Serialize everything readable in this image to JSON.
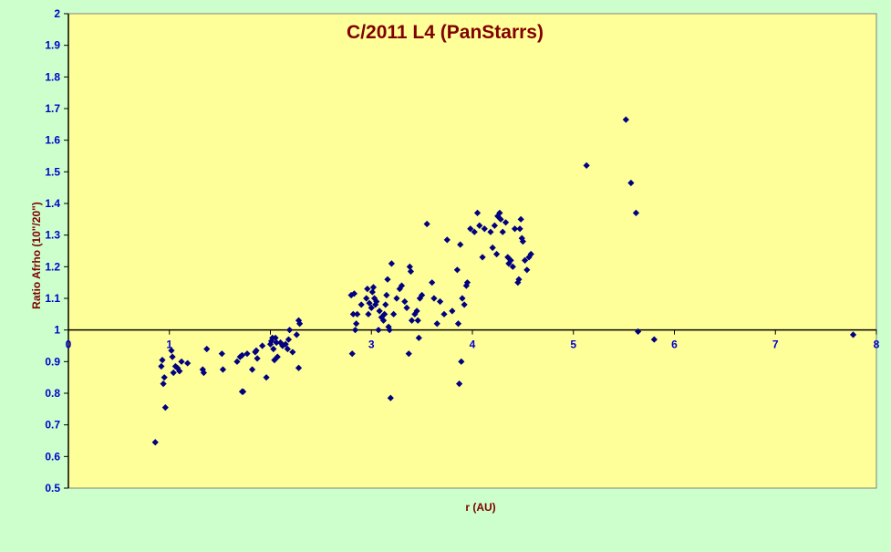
{
  "chart_data": {
    "type": "scatter",
    "title": "C/2011 L4 (PanStarrs)",
    "xlabel": "r (AU)",
    "ylabel": "Ratio Afrho (10\"/20\")",
    "xlim": [
      0,
      8
    ],
    "ylim": [
      0.5,
      2
    ],
    "x_axis_crosses_y": 1,
    "x_ticks": [
      0,
      1,
      2,
      3,
      4,
      5,
      6,
      7,
      8
    ],
    "x_tick_labels": [
      "0",
      "1",
      "",
      "3",
      "4",
      "5",
      "6",
      "7",
      "8"
    ],
    "y_ticks": [
      0.5,
      0.6,
      0.7,
      0.8,
      0.9,
      1,
      1.1,
      1.2,
      1.3,
      1.4,
      1.5,
      1.6,
      1.7,
      1.8,
      1.9,
      2
    ],
    "y_tick_labels": [
      "0.5",
      "0.6",
      "0.7",
      "0.8",
      "0.9",
      "1",
      "1.1",
      "1.2",
      "1.3",
      "1.4",
      "1.5",
      "1.6",
      "1.7",
      "1.8",
      "1.9",
      "2"
    ],
    "grid": false,
    "legend": "none",
    "colors": {
      "background": "#ccffcc",
      "plot_area": "#ffff99",
      "marker": "#000080",
      "title": "#800000",
      "axis_label": "#800000",
      "tick_label": "#0000cc"
    },
    "series": [
      {
        "marker": "diamond",
        "points": [
          [
            0.86,
            0.645
          ],
          [
            0.93,
            0.905
          ],
          [
            0.92,
            0.885
          ],
          [
            0.94,
            0.83
          ],
          [
            0.95,
            0.85
          ],
          [
            0.96,
            0.755
          ],
          [
            1.02,
            0.935
          ],
          [
            1.03,
            0.915
          ],
          [
            1.04,
            0.865
          ],
          [
            1.06,
            0.885
          ],
          [
            1.08,
            0.88
          ],
          [
            1.1,
            0.87
          ],
          [
            1.12,
            0.9
          ],
          [
            1.18,
            0.895
          ],
          [
            1.33,
            0.875
          ],
          [
            1.34,
            0.865
          ],
          [
            1.37,
            0.94
          ],
          [
            1.52,
            0.925
          ],
          [
            1.53,
            0.875
          ],
          [
            1.67,
            0.9
          ],
          [
            1.7,
            0.915
          ],
          [
            1.72,
            0.92
          ],
          [
            1.72,
            0.805
          ],
          [
            1.73,
            0.805
          ],
          [
            1.77,
            0.925
          ],
          [
            1.82,
            0.875
          ],
          [
            1.85,
            0.93
          ],
          [
            1.86,
            0.935
          ],
          [
            1.87,
            0.91
          ],
          [
            1.92,
            0.95
          ],
          [
            1.96,
            0.85
          ],
          [
            2.0,
            0.955
          ],
          [
            2.01,
            0.965
          ],
          [
            2.02,
            0.975
          ],
          [
            2.03,
            0.94
          ],
          [
            2.04,
            0.905
          ],
          [
            2.05,
            0.975
          ],
          [
            2.06,
            0.96
          ],
          [
            2.07,
            0.915
          ],
          [
            2.1,
            0.96
          ],
          [
            2.12,
            0.95
          ],
          [
            2.15,
            0.955
          ],
          [
            2.17,
            0.94
          ],
          [
            2.18,
            0.97
          ],
          [
            2.19,
            1.0
          ],
          [
            2.22,
            0.93
          ],
          [
            2.26,
            0.985
          ],
          [
            2.28,
            0.88
          ],
          [
            2.28,
            1.03
          ],
          [
            2.29,
            1.02
          ],
          [
            2.8,
            1.11
          ],
          [
            2.81,
            0.925
          ],
          [
            2.82,
            1.05
          ],
          [
            2.83,
            1.115
          ],
          [
            2.84,
            1.0
          ],
          [
            2.85,
            1.02
          ],
          [
            2.86,
            1.05
          ],
          [
            2.9,
            1.08
          ],
          [
            2.95,
            1.1
          ],
          [
            2.96,
            1.13
          ],
          [
            2.97,
            1.05
          ],
          [
            2.98,
            1.085
          ],
          [
            3.0,
            1.07
          ],
          [
            3.01,
            1.12
          ],
          [
            3.02,
            1.135
          ],
          [
            3.03,
            1.1
          ],
          [
            3.04,
            1.08
          ],
          [
            3.05,
            1.09
          ],
          [
            3.07,
            1.0
          ],
          [
            3.08,
            1.06
          ],
          [
            3.1,
            1.04
          ],
          [
            3.12,
            1.03
          ],
          [
            3.13,
            1.05
          ],
          [
            3.14,
            1.08
          ],
          [
            3.15,
            1.11
          ],
          [
            3.16,
            1.16
          ],
          [
            3.17,
            1.01
          ],
          [
            3.18,
            1.0
          ],
          [
            3.19,
            0.785
          ],
          [
            3.2,
            1.21
          ],
          [
            3.22,
            1.05
          ],
          [
            3.25,
            1.1
          ],
          [
            3.28,
            1.13
          ],
          [
            3.3,
            1.14
          ],
          [
            3.33,
            1.09
          ],
          [
            3.35,
            1.07
          ],
          [
            3.37,
            0.925
          ],
          [
            3.38,
            1.2
          ],
          [
            3.39,
            1.185
          ],
          [
            3.4,
            1.03
          ],
          [
            3.43,
            1.05
          ],
          [
            3.45,
            1.06
          ],
          [
            3.46,
            1.03
          ],
          [
            3.47,
            0.975
          ],
          [
            3.48,
            1.1
          ],
          [
            3.5,
            1.11
          ],
          [
            3.55,
            1.335
          ],
          [
            3.6,
            1.15
          ],
          [
            3.62,
            1.1
          ],
          [
            3.65,
            1.02
          ],
          [
            3.68,
            1.09
          ],
          [
            3.72,
            1.05
          ],
          [
            3.75,
            1.285
          ],
          [
            3.8,
            1.06
          ],
          [
            3.85,
            1.19
          ],
          [
            3.86,
            1.02
          ],
          [
            3.87,
            0.83
          ],
          [
            3.88,
            1.27
          ],
          [
            3.89,
            0.9
          ],
          [
            3.9,
            1.1
          ],
          [
            3.92,
            1.08
          ],
          [
            3.94,
            1.14
          ],
          [
            3.95,
            1.15
          ],
          [
            3.98,
            1.32
          ],
          [
            4.02,
            1.31
          ],
          [
            4.05,
            1.37
          ],
          [
            4.07,
            1.33
          ],
          [
            4.1,
            1.23
          ],
          [
            4.12,
            1.32
          ],
          [
            4.18,
            1.31
          ],
          [
            4.2,
            1.26
          ],
          [
            4.22,
            1.33
          ],
          [
            4.24,
            1.24
          ],
          [
            4.25,
            1.36
          ],
          [
            4.27,
            1.37
          ],
          [
            4.28,
            1.35
          ],
          [
            4.3,
            1.31
          ],
          [
            4.33,
            1.34
          ],
          [
            4.35,
            1.23
          ],
          [
            4.36,
            1.21
          ],
          [
            4.38,
            1.22
          ],
          [
            4.4,
            1.2
          ],
          [
            4.42,
            1.32
          ],
          [
            4.45,
            1.15
          ],
          [
            4.46,
            1.16
          ],
          [
            4.47,
            1.32
          ],
          [
            4.48,
            1.35
          ],
          [
            4.49,
            1.29
          ],
          [
            4.5,
            1.28
          ],
          [
            4.52,
            1.22
          ],
          [
            4.54,
            1.19
          ],
          [
            4.56,
            1.23
          ],
          [
            4.58,
            1.24
          ],
          [
            5.13,
            1.52
          ],
          [
            5.52,
            1.665
          ],
          [
            5.57,
            1.465
          ],
          [
            5.62,
            1.37
          ],
          [
            5.64,
            0.995
          ],
          [
            5.8,
            0.97
          ],
          [
            7.77,
            0.985
          ]
        ]
      }
    ]
  }
}
